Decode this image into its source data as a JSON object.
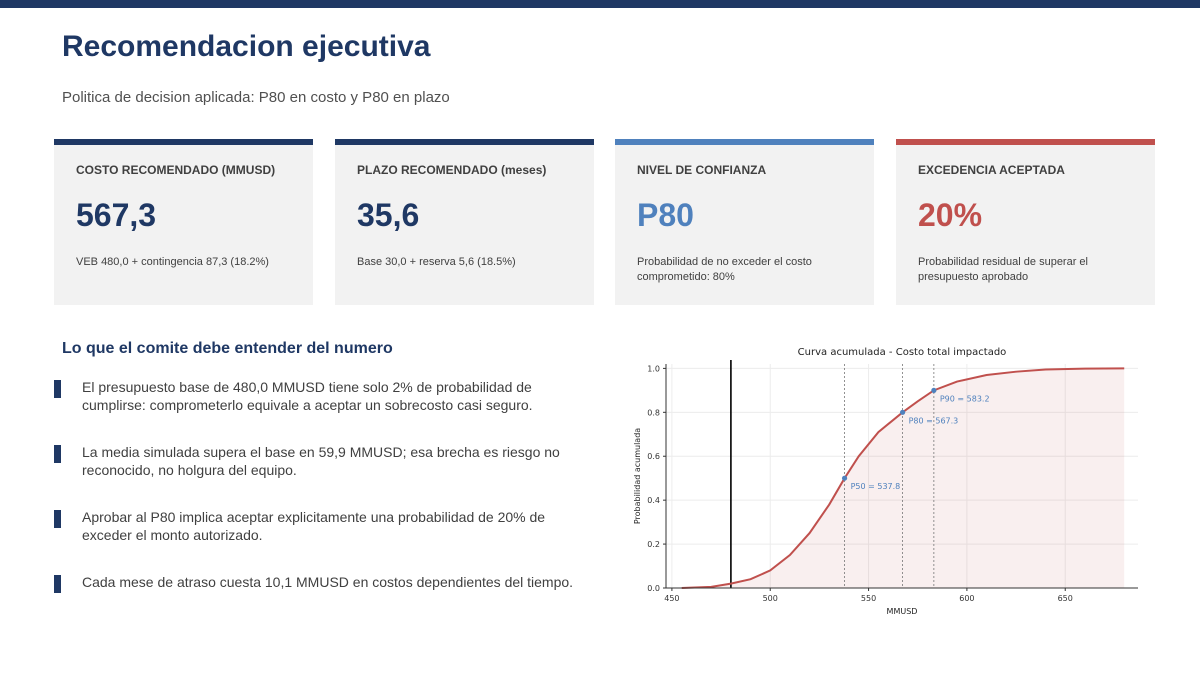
{
  "header": {
    "title": "Recomendacion ejecutiva",
    "subtitle": "Politica de decision aplicada: P80 en costo y P80 en plazo"
  },
  "colors": {
    "navy": "#1f3864",
    "blue": "#4f81bd",
    "red": "#c0504d",
    "card_bg": "#f2f2f2"
  },
  "cards": [
    {
      "label": "COSTO RECOMENDADO (MMUSD)",
      "value": "567,3",
      "note": "VEB 480,0 + contingencia 87,3 (18.2%)",
      "color": "#1f3864"
    },
    {
      "label": "PLAZO RECOMENDADO (meses)",
      "value": "35,6",
      "note": "Base 30,0 + reserva 5,6 (18.5%)",
      "color": "#1f3864"
    },
    {
      "label": "NIVEL DE CONFIANZA",
      "value": "P80",
      "note": "Probabilidad de no exceder el costo comprometido: 80%",
      "color": "#4f81bd"
    },
    {
      "label": "EXCEDENCIA ACEPTADA",
      "value": "20%",
      "note": "Probabilidad residual de superar el presupuesto aprobado",
      "color": "#c0504d"
    }
  ],
  "section": {
    "title": "Lo que el comite debe entender del numero",
    "bullets": [
      "El presupuesto base de 480,0 MMUSD tiene solo 2% de probabilidad de cumplirse: comprometerlo equivale a aceptar un sobrecosto casi seguro.",
      "La media simulada supera el base en 59,9 MMUSD; esa brecha es riesgo no reconocido, no holgura del equipo.",
      "Aprobar al P80 implica aceptar explicitamente una probabilidad de 20% de exceder el monto autorizado.",
      "Cada mese de atraso cuesta 10,1 MMUSD en costos dependientes del tiempo."
    ]
  },
  "chart_data": {
    "type": "line",
    "title": "Curva acumulada - Costo total impactado",
    "xlabel": "MMUSD",
    "ylabel": "Probabilidad acumulada",
    "xlim": [
      447,
      687
    ],
    "ylim": [
      0.0,
      1.02
    ],
    "x_ticks": [
      450,
      500,
      550,
      600,
      650
    ],
    "y_ticks": [
      "0.0",
      "0.2",
      "0.4",
      "0.6",
      "0.8",
      "1.0"
    ],
    "grid": true,
    "fill_under": true,
    "series": [
      {
        "x": [
          455,
          470,
          480,
          490,
          500,
          510,
          520,
          530,
          537.8,
          545,
          555,
          567.3,
          575,
          583.2,
          595,
          610,
          625,
          640,
          660,
          680
        ],
        "y": [
          0.0,
          0.005,
          0.02,
          0.04,
          0.08,
          0.15,
          0.25,
          0.38,
          0.5,
          0.6,
          0.71,
          0.8,
          0.85,
          0.9,
          0.94,
          0.97,
          0.985,
          0.995,
          0.999,
          1.0
        ],
        "color": "#c0504d"
      }
    ],
    "reference_line": {
      "x": 480,
      "color": "#000000"
    },
    "markers": [
      {
        "label": "P50 = 537.8",
        "x": 537.8,
        "y": 0.5
      },
      {
        "label": "P80 = 567.3",
        "x": 567.3,
        "y": 0.8
      },
      {
        "label": "P90 = 583.2",
        "x": 583.2,
        "y": 0.9
      }
    ]
  }
}
